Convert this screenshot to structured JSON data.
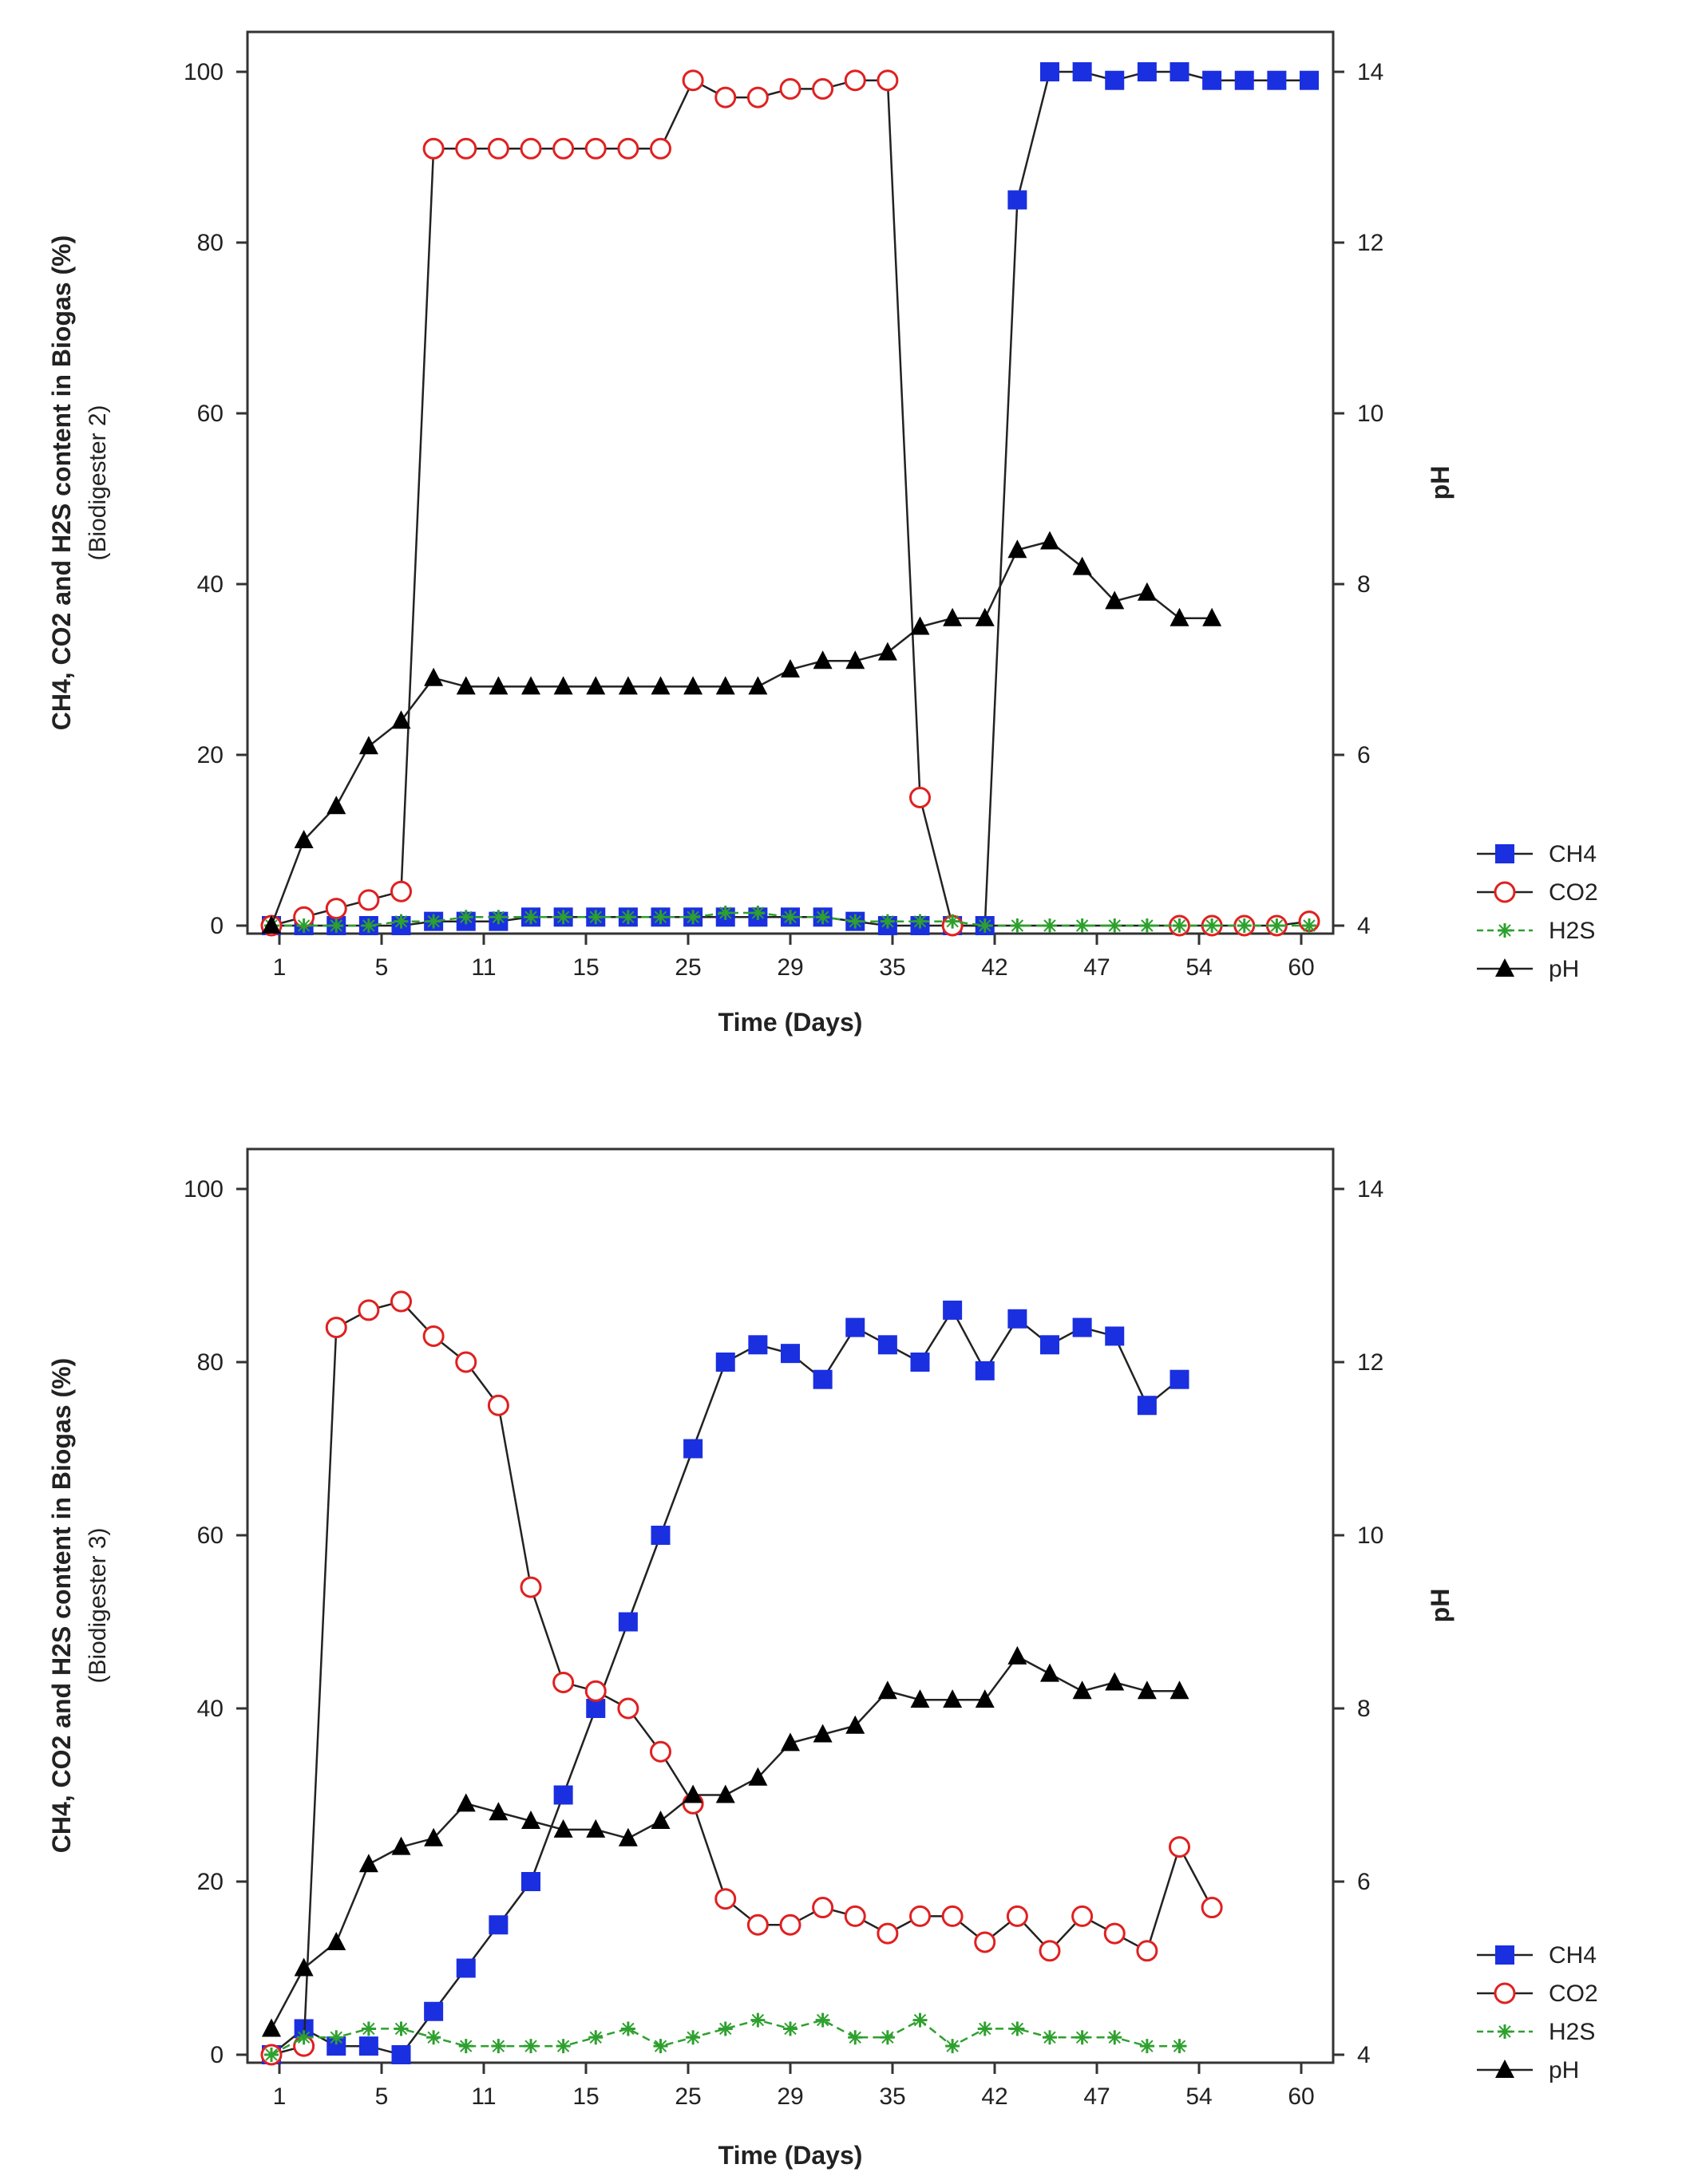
{
  "chart_data": [
    {
      "type": "line",
      "xlabel": "Time (Days)",
      "ylabel": "CH4, CO2 and H2S content in Biogas (%)",
      "ylabel_sub": "(Biodigester 2)",
      "y2label": "pH",
      "xticks": [
        "1",
        "5",
        "11",
        "15",
        "25",
        "29",
        "35",
        "42",
        "47",
        "54",
        "60"
      ],
      "ylim": [
        0,
        100
      ],
      "yticks": [
        "0",
        "20",
        "40",
        "60",
        "80",
        "100"
      ],
      "y2lim": [
        4,
        14
      ],
      "y2ticks": [
        "4",
        "6",
        "8",
        "10",
        "12",
        "14"
      ],
      "grid": false,
      "legend_position": "right",
      "series": [
        {
          "name": "CH4",
          "color": "#1a2fe0",
          "marker": "square",
          "axis": "left",
          "x": [
            1,
            2,
            3,
            4,
            5,
            6,
            7,
            8,
            9,
            10,
            11,
            12,
            13,
            14,
            15,
            16,
            17,
            18,
            19,
            20,
            21,
            22,
            23,
            24,
            25,
            26,
            27,
            28,
            29,
            30,
            31,
            32,
            33
          ],
          "y": [
            0,
            0,
            0,
            0,
            0,
            0.5,
            0.5,
            0.5,
            1,
            1,
            1,
            1,
            1,
            1,
            1,
            1,
            1,
            1,
            0.5,
            0,
            0,
            0,
            0,
            85,
            100,
            100,
            99,
            100,
            100,
            99,
            99,
            99,
            99
          ]
        },
        {
          "name": "CO2",
          "color": "#e02020",
          "marker": "circle-open",
          "axis": "left",
          "x": [
            1,
            2,
            3,
            4,
            5,
            6,
            7,
            8,
            9,
            10,
            11,
            12,
            13,
            14,
            15,
            16,
            17,
            18,
            19,
            20,
            21,
            22,
            23,
            24,
            25,
            26,
            27,
            28,
            29,
            30,
            31,
            32,
            33
          ],
          "y": [
            0,
            1,
            2,
            3,
            4,
            91,
            91,
            91,
            91,
            91,
            91,
            91,
            91,
            99,
            97,
            97,
            98,
            98,
            99,
            99,
            15,
            0,
            null,
            null,
            null,
            null,
            null,
            null,
            0,
            0,
            0,
            0,
            0.5
          ]
        },
        {
          "name": "H2S",
          "color": "#2ea02e",
          "marker": "asterisk",
          "axis": "left",
          "x": [
            1,
            2,
            3,
            4,
            5,
            6,
            7,
            8,
            9,
            10,
            11,
            12,
            13,
            14,
            15,
            16,
            17,
            18,
            19,
            20,
            21,
            22,
            23,
            24,
            25,
            26,
            27,
            28,
            29,
            30,
            31,
            32,
            33
          ],
          "y": [
            0,
            0,
            0,
            0,
            0.5,
            0.5,
            1,
            1,
            1,
            1,
            1,
            1,
            1,
            1,
            1.5,
            1.5,
            1,
            1,
            0.5,
            0.5,
            0.5,
            0.5,
            0,
            0,
            0,
            0,
            0,
            0,
            0,
            0,
            0,
            0,
            0
          ]
        },
        {
          "name": "pH",
          "color": "#000000",
          "marker": "triangle",
          "axis": "right",
          "x": [
            1,
            2,
            3,
            4,
            5,
            6,
            7,
            8,
            9,
            10,
            11,
            12,
            13,
            14,
            15,
            16,
            17,
            18,
            19,
            20,
            21,
            22,
            23,
            24,
            25,
            26,
            27,
            28,
            29,
            30,
            31,
            32,
            33
          ],
          "y": [
            4,
            5,
            5.4,
            6.1,
            6.4,
            6.9,
            6.8,
            6.8,
            6.8,
            6.8,
            6.8,
            6.8,
            6.8,
            6.8,
            6.8,
            6.8,
            7,
            7.1,
            7.1,
            7.2,
            7.5,
            7.6,
            7.6,
            8.4,
            8.5,
            8.2,
            7.8,
            7.9,
            7.6,
            7.6,
            null,
            null,
            null
          ]
        }
      ]
    },
    {
      "type": "line",
      "xlabel": "Time (Days)",
      "ylabel": "CH4, CO2 and H2S content in Biogas (%)",
      "ylabel_sub": "(Biodigester 3)",
      "y2label": "pH",
      "xticks": [
        "1",
        "5",
        "11",
        "15",
        "25",
        "29",
        "35",
        "42",
        "47",
        "54",
        "60"
      ],
      "ylim": [
        0,
        100
      ],
      "yticks": [
        "0",
        "20",
        "40",
        "60",
        "80",
        "100"
      ],
      "y2lim": [
        4,
        14
      ],
      "y2ticks": [
        "4",
        "6",
        "8",
        "10",
        "12",
        "14"
      ],
      "grid": false,
      "legend_position": "right",
      "series": [
        {
          "name": "CH4",
          "color": "#1a2fe0",
          "marker": "square",
          "axis": "left",
          "x": [
            1,
            2,
            3,
            4,
            5,
            6,
            7,
            8,
            9,
            10,
            11,
            12,
            13,
            14,
            15,
            16,
            17,
            18,
            19,
            20,
            21,
            22,
            23,
            24,
            25,
            26,
            27,
            28,
            29,
            30
          ],
          "y": [
            0,
            3,
            1,
            1,
            0,
            5,
            10,
            15,
            20,
            30,
            40,
            50,
            60,
            70,
            80,
            82,
            81,
            78,
            84,
            82,
            80,
            86,
            79,
            85,
            82,
            84,
            83,
            75,
            78,
            null
          ]
        },
        {
          "name": "CO2",
          "color": "#e02020",
          "marker": "circle-open",
          "axis": "left",
          "x": [
            1,
            2,
            3,
            4,
            5,
            6,
            7,
            8,
            9,
            10,
            11,
            12,
            13,
            14,
            15,
            16,
            17,
            18,
            19,
            20,
            21,
            22,
            23,
            24,
            25,
            26,
            27,
            28,
            29,
            30
          ],
          "y": [
            0,
            1,
            84,
            86,
            87,
            83,
            80,
            75,
            54,
            43,
            42,
            40,
            35,
            29,
            18,
            15,
            15,
            17,
            16,
            14,
            16,
            16,
            13,
            16,
            12,
            16,
            14,
            12,
            24,
            17
          ]
        },
        {
          "name": "H2S",
          "color": "#2ea02e",
          "marker": "asterisk",
          "axis": "left",
          "x": [
            1,
            2,
            3,
            4,
            5,
            6,
            7,
            8,
            9,
            10,
            11,
            12,
            13,
            14,
            15,
            16,
            17,
            18,
            19,
            20,
            21,
            22,
            23,
            24,
            25,
            26,
            27,
            28,
            29,
            30
          ],
          "y": [
            0,
            2,
            2,
            3,
            3,
            2,
            1,
            1,
            1,
            1,
            2,
            3,
            1,
            2,
            3,
            4,
            3,
            4,
            2,
            2,
            4,
            1,
            3,
            3,
            2,
            2,
            2,
            1,
            1,
            null
          ]
        },
        {
          "name": "pH",
          "color": "#000000",
          "marker": "triangle",
          "axis": "right",
          "x": [
            1,
            2,
            3,
            4,
            5,
            6,
            7,
            8,
            9,
            10,
            11,
            12,
            13,
            14,
            15,
            16,
            17,
            18,
            19,
            20,
            21,
            22,
            23,
            24,
            25,
            26,
            27,
            28,
            29,
            30
          ],
          "y": [
            4.3,
            5,
            5.3,
            6.2,
            6.4,
            6.5,
            6.9,
            6.8,
            6.7,
            6.6,
            6.6,
            6.5,
            6.7,
            7,
            7,
            7.2,
            7.6,
            7.7,
            7.8,
            8.2,
            8.1,
            8.1,
            8.1,
            8.6,
            8.4,
            8.2,
            8.3,
            8.2,
            8.2,
            null
          ]
        }
      ]
    }
  ],
  "legend": {
    "ch4": "CH4",
    "co2": "CO2",
    "h2s": "H2S",
    "ph": "pH"
  }
}
